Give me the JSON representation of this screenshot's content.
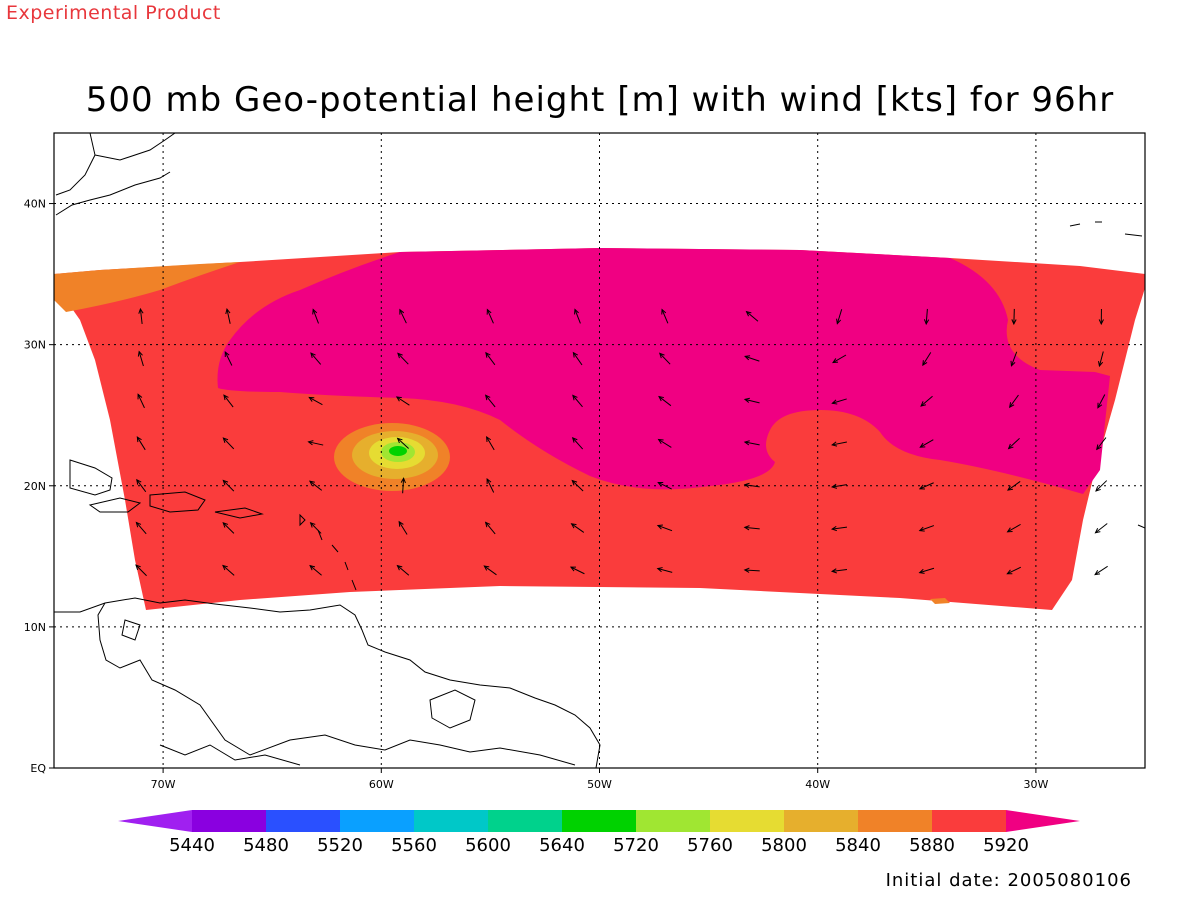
{
  "header": {
    "experimental_label": "Experimental Product"
  },
  "title": "500 mb Geo-potential height [m] with wind [kts] for 96hr",
  "map": {
    "projection": "cylindrical",
    "lon_range": [
      -75,
      -25
    ],
    "lat_range": [
      0,
      45
    ],
    "lon_ticks": [
      {
        "value": -70,
        "label": "70W"
      },
      {
        "value": -60,
        "label": "60W"
      },
      {
        "value": -50,
        "label": "50W"
      },
      {
        "value": -40,
        "label": "40W"
      },
      {
        "value": -30,
        "label": "30W"
      }
    ],
    "lat_ticks": [
      {
        "value": 0,
        "label": "EQ"
      },
      {
        "value": 10,
        "label": "10N"
      },
      {
        "value": 20,
        "label": "20N"
      },
      {
        "value": 30,
        "label": "30N"
      },
      {
        "value": 40,
        "label": "40N"
      }
    ],
    "grid": "dotted",
    "coastline_color": "#000000",
    "vortex_center": {
      "lon": -59.3,
      "lat": 22.5
    }
  },
  "colorbar": {
    "levels": [
      "5440",
      "5480",
      "5520",
      "5560",
      "5600",
      "5640",
      "5720",
      "5760",
      "5800",
      "5840",
      "5880",
      "5920"
    ],
    "colors": [
      "#a020f0",
      "#8a00e0",
      "#2a50ff",
      "#0aa0ff",
      "#00c8c8",
      "#00d28c",
      "#00d200",
      "#a0e632",
      "#e6dc32",
      "#e6af2d",
      "#f08228",
      "#fa3c3c",
      "#f00082"
    ]
  },
  "footer": {
    "initial_date": "Initial date: 2005080106"
  }
}
